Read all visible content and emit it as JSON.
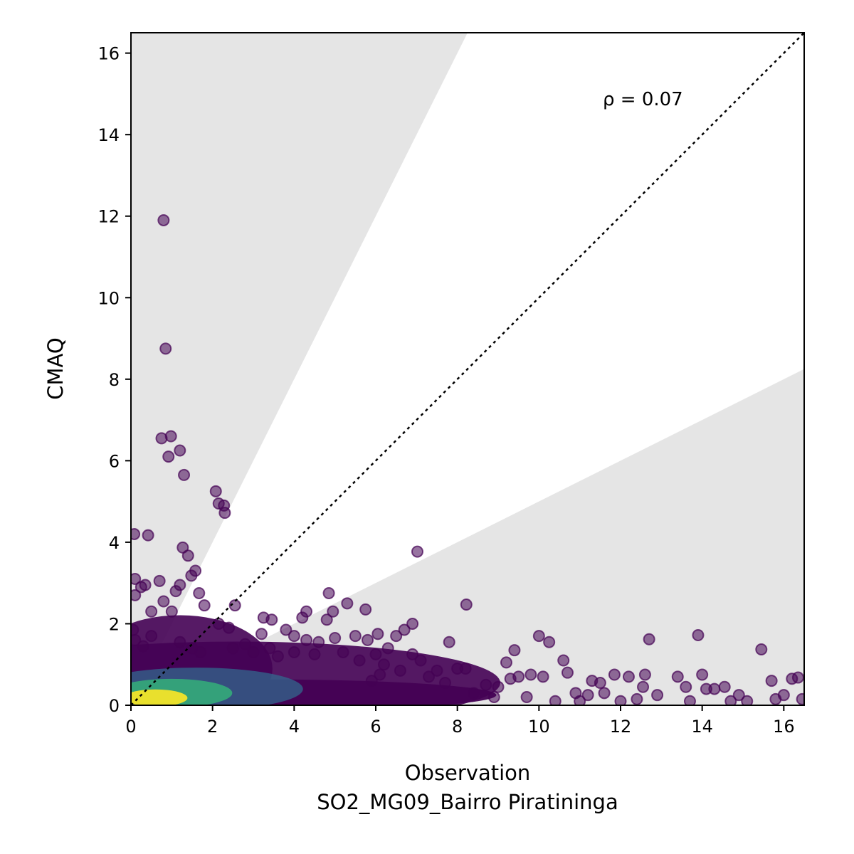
{
  "chart_data": {
    "type": "scatter",
    "title": "",
    "xlabel": "Observation",
    "xlabel_line2": "SO2_MG09_Bairro Piratininga",
    "ylabel": "CMAQ",
    "xlim": [
      0,
      16.5
    ],
    "ylim": [
      0,
      16.5
    ],
    "xticks": [
      "0",
      "2",
      "4",
      "6",
      "8",
      "10",
      "12",
      "14",
      "16"
    ],
    "yticks": [
      "0",
      "2",
      "4",
      "6",
      "8",
      "10",
      "12",
      "14",
      "16"
    ],
    "annotation": "ρ = 0.07",
    "grid": false,
    "reference_line": "1:1 dotted",
    "shaded_bands": "factor-of-2 wedges (y > 2x and y < 0.5x) in light grey",
    "colormap": "viridis (point density)",
    "colors": {
      "low_density": "#440154",
      "mid_density": "#31688e",
      "high_density": "#35b779",
      "peak_density": "#fde725",
      "band": "#e5e5e5"
    },
    "points": [
      [
        0.8,
        11.9
      ],
      [
        0.85,
        8.75
      ],
      [
        0.75,
        6.55
      ],
      [
        0.98,
        6.6
      ],
      [
        0.92,
        6.1
      ],
      [
        1.2,
        6.25
      ],
      [
        1.3,
        5.65
      ],
      [
        2.08,
        5.25
      ],
      [
        2.15,
        4.95
      ],
      [
        2.28,
        4.9
      ],
      [
        2.3,
        4.72
      ],
      [
        0.08,
        4.2
      ],
      [
        0.42,
        4.17
      ],
      [
        1.27,
        3.87
      ],
      [
        1.4,
        3.67
      ],
      [
        1.58,
        3.3
      ],
      [
        1.48,
        3.18
      ],
      [
        0.1,
        3.1
      ],
      [
        0.25,
        2.9
      ],
      [
        0.35,
        2.95
      ],
      [
        0.7,
        3.05
      ],
      [
        1.2,
        2.95
      ],
      [
        1.1,
        2.8
      ],
      [
        0.1,
        2.7
      ],
      [
        1.67,
        2.75
      ],
      [
        0.8,
        2.55
      ],
      [
        1.0,
        2.3
      ],
      [
        0.5,
        2.3
      ],
      [
        1.8,
        2.45
      ],
      [
        2.55,
        2.45
      ],
      [
        7.02,
        3.77
      ],
      [
        4.85,
        2.75
      ],
      [
        8.22,
        2.47
      ],
      [
        5.3,
        2.5
      ],
      [
        5.75,
        2.35
      ],
      [
        4.3,
        2.3
      ],
      [
        4.2,
        2.15
      ],
      [
        4.95,
        2.3
      ],
      [
        4.8,
        2.1
      ],
      [
        3.25,
        2.15
      ],
      [
        3.45,
        2.1
      ],
      [
        3.2,
        1.75
      ],
      [
        2.15,
        2.0
      ],
      [
        2.4,
        1.9
      ],
      [
        6.9,
        2.0
      ],
      [
        6.05,
        1.75
      ],
      [
        6.5,
        1.7
      ],
      [
        6.7,
        1.85
      ],
      [
        3.8,
        1.85
      ],
      [
        4.0,
        1.7
      ],
      [
        4.3,
        1.6
      ],
      [
        4.6,
        1.55
      ],
      [
        5.0,
        1.65
      ],
      [
        5.5,
        1.7
      ],
      [
        5.8,
        1.6
      ],
      [
        6.3,
        1.4
      ],
      [
        6.0,
        1.25
      ],
      [
        6.9,
        1.25
      ],
      [
        7.1,
        1.1
      ],
      [
        7.8,
        1.55
      ],
      [
        7.5,
        0.85
      ],
      [
        8.0,
        0.9
      ],
      [
        8.2,
        0.9
      ],
      [
        8.7,
        0.5
      ],
      [
        9.0,
        0.45
      ],
      [
        9.2,
        1.05
      ],
      [
        9.4,
        1.35
      ],
      [
        9.5,
        0.7
      ],
      [
        9.3,
        0.65
      ],
      [
        9.8,
        0.75
      ],
      [
        10.0,
        1.7
      ],
      [
        10.25,
        1.55
      ],
      [
        10.1,
        0.7
      ],
      [
        10.6,
        1.1
      ],
      [
        10.7,
        0.8
      ],
      [
        10.9,
        0.3
      ],
      [
        11.2,
        0.25
      ],
      [
        11.3,
        0.6
      ],
      [
        11.5,
        0.55
      ],
      [
        11.6,
        0.3
      ],
      [
        11.85,
        0.75
      ],
      [
        12.2,
        0.7
      ],
      [
        12.6,
        0.75
      ],
      [
        12.55,
        0.45
      ],
      [
        12.7,
        1.62
      ],
      [
        12.9,
        0.25
      ],
      [
        13.4,
        0.7
      ],
      [
        13.6,
        0.45
      ],
      [
        13.9,
        1.72
      ],
      [
        14.0,
        0.75
      ],
      [
        14.1,
        0.4
      ],
      [
        14.3,
        0.4
      ],
      [
        14.55,
        0.45
      ],
      [
        14.9,
        0.25
      ],
      [
        15.45,
        1.37
      ],
      [
        15.7,
        0.6
      ],
      [
        15.8,
        0.15
      ],
      [
        16.0,
        0.25
      ],
      [
        16.2,
        0.65
      ],
      [
        16.35,
        0.68
      ],
      [
        16.45,
        0.15
      ],
      [
        9.7,
        0.2
      ],
      [
        10.4,
        0.1
      ],
      [
        11.0,
        0.1
      ],
      [
        12.0,
        0.1
      ],
      [
        12.4,
        0.15
      ],
      [
        13.7,
        0.1
      ],
      [
        14.7,
        0.1
      ],
      [
        15.1,
        0.1
      ],
      [
        0.05,
        1.85
      ],
      [
        0.1,
        1.6
      ],
      [
        0.5,
        1.7
      ],
      [
        0.3,
        1.45
      ],
      [
        1.2,
        1.55
      ],
      [
        1.5,
        1.4
      ],
      [
        1.7,
        1.3
      ],
      [
        2.5,
        1.4
      ],
      [
        2.8,
        1.5
      ],
      [
        3.0,
        1.3
      ],
      [
        3.4,
        1.4
      ],
      [
        3.6,
        1.2
      ],
      [
        4.0,
        1.3
      ],
      [
        4.5,
        1.25
      ],
      [
        5.2,
        1.3
      ],
      [
        5.6,
        1.1
      ],
      [
        6.2,
        1.0
      ],
      [
        6.6,
        0.85
      ],
      [
        7.3,
        0.7
      ],
      [
        7.7,
        0.55
      ],
      [
        8.4,
        0.3
      ],
      [
        8.9,
        0.2
      ],
      [
        6.1,
        0.75
      ],
      [
        5.9,
        0.6
      ]
    ]
  }
}
